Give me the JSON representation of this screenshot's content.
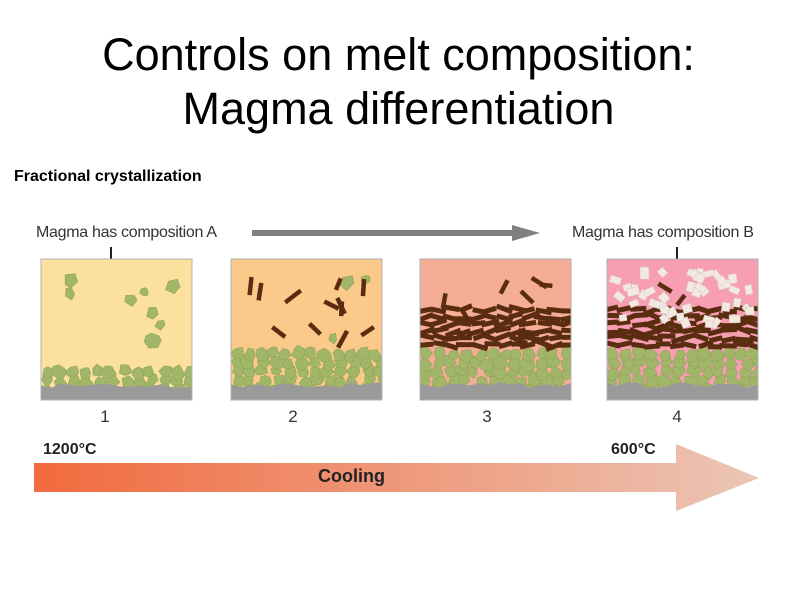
{
  "slide": {
    "title_line1": "Controls on melt composition:",
    "title_line2": "Magma differentiation",
    "subtitle": "Fractional crystallization"
  },
  "figure": {
    "caption_start": "Magma has composition A",
    "caption_end": "Magma has composition B",
    "stages": [
      {
        "number": "1",
        "melt_color": "#fbe0a0"
      },
      {
        "number": "2",
        "melt_color": "#fbc98a"
      },
      {
        "number": "3",
        "melt_color": "#f6ad98"
      },
      {
        "number": "4",
        "melt_color": "#f79eb2"
      }
    ],
    "temp_start": "1200°C",
    "temp_end": "600°C",
    "cooling_label": "Cooling",
    "colors": {
      "olivine_crystals": "#a2b66a",
      "pyroxene_crystals": "#5a2c10",
      "feldspar_crystals": "#f2e9e1",
      "floor": "#9a9a9a",
      "arrow_grey": "#808080",
      "cooling_hot": "#f26a3e",
      "cooling_cool": "#ebc6b6"
    }
  }
}
